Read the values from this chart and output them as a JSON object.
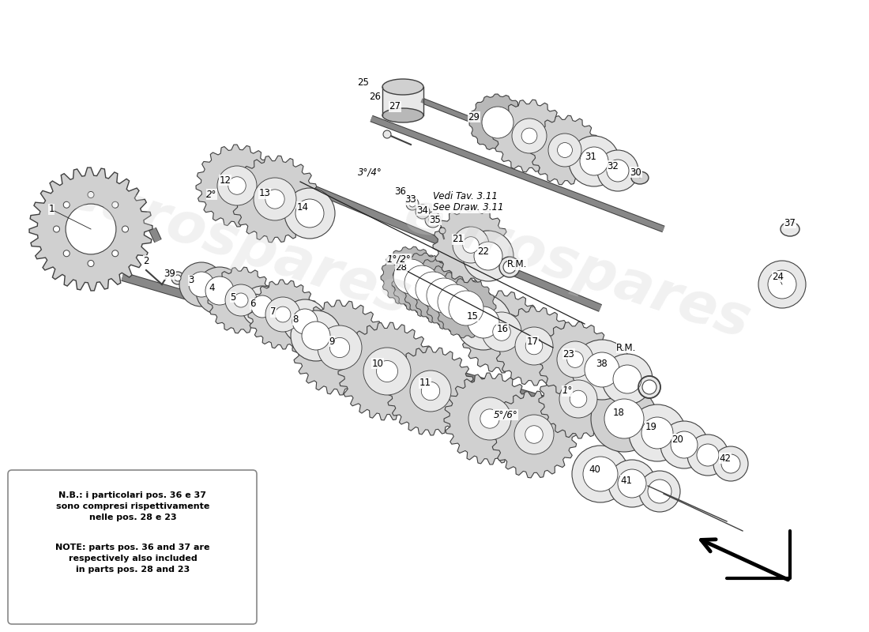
{
  "bg_color": "#ffffff",
  "watermark_text": "eurospares",
  "note_italian": "N.B.: i particolari pos. 36 e 37\nsono compresi rispettivamente\nnelle pos. 28 e 23",
  "note_english": "NOTE: parts pos. 36 and 37 are\nrespectively also included\nin parts pos. 28 and 23",
  "see_draw_italian": "Vedi Tav. 3.11",
  "see_draw_english": "See Draw. 3.11",
  "figsize": [
    11.0,
    8.0
  ],
  "dpi": 100,
  "xlim": [
    0,
    1100
  ],
  "ylim": [
    0,
    800
  ],
  "label_fontsize": 8.5,
  "watermark_fontsize": 52,
  "watermark_color": "#d0d0d0",
  "watermark_alpha": 0.3,
  "gear_fill_light": "#e8e8e8",
  "gear_fill_mid": "#d0d0d0",
  "gear_fill_dark": "#b8b8b8",
  "gear_edge": "#404040",
  "shaft_color": "#888888",
  "shaft_edge": "#404040",
  "line_color": "#202020"
}
